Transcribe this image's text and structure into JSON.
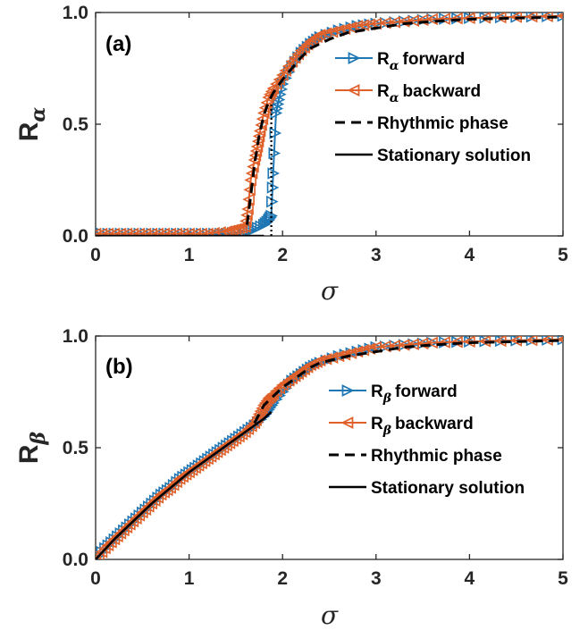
{
  "colors": {
    "forward": "#1f77b4",
    "backward": "#e0602a",
    "rhythmic": "#000000",
    "stationary": "#000000",
    "axes": "#262626"
  },
  "chart_data": [
    {
      "type": "line",
      "panel_label": "(a)",
      "ylabel": "R",
      "ylabel_sub": "α",
      "xlabel": "σ",
      "xlim": [
        0,
        5
      ],
      "ylim": [
        0,
        1
      ],
      "xticks": [
        "0",
        "1",
        "2",
        "3",
        "4",
        "5"
      ],
      "yticks": [
        "0.0",
        "0.5",
        "1.0"
      ],
      "grid": false,
      "legend_position": "center-right",
      "series": [
        {
          "name": "R α forward",
          "legend_text": "forward",
          "legend_sub": "α",
          "legend_prefix": "R",
          "style": "marker-right",
          "color": "#1f77b4",
          "x": [
            0,
            0.2,
            0.4,
            0.6,
            0.8,
            1.0,
            1.2,
            1.4,
            1.6,
            1.7,
            1.8,
            1.85,
            1.88,
            1.9,
            1.93,
            1.96,
            2.0,
            2.1,
            2.2,
            2.3,
            2.4,
            2.6,
            2.8,
            3.0,
            3.3,
            3.6,
            4.0,
            4.5,
            5.0
          ],
          "y": [
            0.01,
            0.01,
            0.01,
            0.01,
            0.01,
            0.01,
            0.01,
            0.01,
            0.02,
            0.03,
            0.05,
            0.07,
            0.09,
            0.28,
            0.55,
            0.61,
            0.68,
            0.76,
            0.82,
            0.86,
            0.89,
            0.92,
            0.94,
            0.95,
            0.96,
            0.97,
            0.975,
            0.98,
            0.985
          ]
        },
        {
          "name": "R α backward",
          "legend_text": "backward",
          "legend_sub": "α",
          "legend_prefix": "R",
          "style": "marker-left",
          "color": "#e0602a",
          "x": [
            0,
            0.2,
            0.4,
            0.6,
            0.8,
            1.0,
            1.2,
            1.4,
            1.5,
            1.6,
            1.63,
            1.66,
            1.7,
            1.73,
            1.76,
            1.8,
            1.85,
            1.9,
            2.0,
            2.1,
            2.2,
            2.3,
            2.4,
            2.6,
            2.8,
            3.0,
            3.3,
            3.6,
            4.0,
            4.5,
            5.0
          ],
          "y": [
            0.01,
            0.01,
            0.01,
            0.01,
            0.01,
            0.01,
            0.01,
            0.02,
            0.03,
            0.04,
            0.12,
            0.25,
            0.34,
            0.4,
            0.47,
            0.55,
            0.62,
            0.66,
            0.72,
            0.78,
            0.83,
            0.87,
            0.9,
            0.92,
            0.94,
            0.95,
            0.96,
            0.97,
            0.975,
            0.98,
            0.985
          ]
        },
        {
          "name": "Rhythmic phase",
          "legend_text": "Rhythmic phase",
          "style": "dashed",
          "color": "#000000",
          "x": [
            1.62,
            1.66,
            1.7,
            1.75,
            1.8,
            1.85,
            1.9,
            2.0,
            2.1,
            2.2,
            2.3,
            2.4,
            2.5,
            2.7,
            3.0,
            3.3,
            3.6,
            4.0,
            4.5,
            5.0
          ],
          "y": [
            0.05,
            0.18,
            0.32,
            0.45,
            0.54,
            0.6,
            0.64,
            0.7,
            0.75,
            0.8,
            0.84,
            0.86,
            0.88,
            0.91,
            0.93,
            0.95,
            0.96,
            0.97,
            0.975,
            0.98
          ]
        },
        {
          "name": "Stationary solution",
          "legend_text": "Stationary solution",
          "style": "solid",
          "color": "#000000",
          "x": [
            0,
            1.0,
            1.6,
            1.8
          ],
          "y": [
            0,
            0,
            0,
            0
          ]
        },
        {
          "name": "Threshold",
          "style": "dotted",
          "color": "#000000",
          "x": [
            1.88,
            1.88
          ],
          "y": [
            0,
            0.6
          ]
        }
      ]
    },
    {
      "type": "line",
      "panel_label": "(b)",
      "ylabel": "R",
      "ylabel_sub": "β",
      "xlabel": "σ",
      "xlim": [
        0,
        5
      ],
      "ylim": [
        0,
        1
      ],
      "xticks": [
        "0",
        "1",
        "2",
        "3",
        "4",
        "5"
      ],
      "yticks": [
        "0.0",
        "0.5",
        "1.0"
      ],
      "grid": false,
      "legend_position": "center-right",
      "series": [
        {
          "name": "R β forward",
          "legend_text": "forward",
          "legend_sub": "β",
          "legend_prefix": "R",
          "style": "marker-right",
          "color": "#1f77b4",
          "x": [
            0,
            0.1,
            0.2,
            0.3,
            0.4,
            0.5,
            0.6,
            0.7,
            0.8,
            0.9,
            1.0,
            1.1,
            1.2,
            1.3,
            1.4,
            1.5,
            1.6,
            1.7,
            1.8,
            1.85,
            1.9,
            2.0,
            2.1,
            2.2,
            2.3,
            2.4,
            2.6,
            2.8,
            3.0,
            3.3,
            3.6,
            4.0,
            4.5,
            5.0
          ],
          "y": [
            0.0,
            0.05,
            0.09,
            0.13,
            0.17,
            0.21,
            0.25,
            0.29,
            0.32,
            0.36,
            0.39,
            0.42,
            0.45,
            0.48,
            0.51,
            0.54,
            0.57,
            0.6,
            0.64,
            0.67,
            0.7,
            0.75,
            0.8,
            0.83,
            0.86,
            0.88,
            0.91,
            0.93,
            0.95,
            0.96,
            0.97,
            0.975,
            0.98,
            0.985
          ]
        },
        {
          "name": "R β backward",
          "legend_text": "backward",
          "legend_sub": "β",
          "legend_prefix": "R",
          "style": "marker-left",
          "color": "#e0602a",
          "x": [
            0,
            0.1,
            0.2,
            0.3,
            0.4,
            0.5,
            0.6,
            0.7,
            0.8,
            0.9,
            1.0,
            1.1,
            1.2,
            1.3,
            1.4,
            1.5,
            1.6,
            1.7,
            1.75,
            1.8,
            1.85,
            1.9,
            2.0,
            2.1,
            2.2,
            2.3,
            2.4,
            2.6,
            2.8,
            3.0,
            3.3,
            3.6,
            4.0,
            4.5,
            5.0
          ],
          "y": [
            0.0,
            0.05,
            0.09,
            0.13,
            0.17,
            0.21,
            0.25,
            0.29,
            0.32,
            0.36,
            0.39,
            0.42,
            0.45,
            0.48,
            0.51,
            0.54,
            0.57,
            0.61,
            0.65,
            0.69,
            0.72,
            0.74,
            0.78,
            0.81,
            0.84,
            0.87,
            0.89,
            0.91,
            0.93,
            0.95,
            0.96,
            0.97,
            0.975,
            0.98,
            0.985
          ]
        },
        {
          "name": "Rhythmic phase",
          "legend_text": "Rhythmic phase",
          "style": "dashed",
          "color": "#000000",
          "x": [
            1.7,
            1.75,
            1.8,
            1.85,
            1.9,
            2.0,
            2.1,
            2.2,
            2.3,
            2.4,
            2.5,
            2.7,
            3.0,
            3.3,
            3.6,
            4.0,
            4.5,
            5.0
          ],
          "y": [
            0.61,
            0.65,
            0.69,
            0.71,
            0.73,
            0.77,
            0.8,
            0.83,
            0.86,
            0.88,
            0.89,
            0.91,
            0.93,
            0.95,
            0.96,
            0.97,
            0.975,
            0.98
          ]
        },
        {
          "name": "Stationary solution",
          "legend_text": "Stationary solution",
          "style": "solid",
          "color": "#000000",
          "x": [
            0,
            0.2,
            0.4,
            0.6,
            0.8,
            1.0,
            1.2,
            1.4,
            1.6,
            1.8,
            1.88
          ],
          "y": [
            0.0,
            0.09,
            0.17,
            0.25,
            0.32,
            0.39,
            0.45,
            0.51,
            0.57,
            0.63,
            0.66
          ]
        }
      ]
    }
  ]
}
